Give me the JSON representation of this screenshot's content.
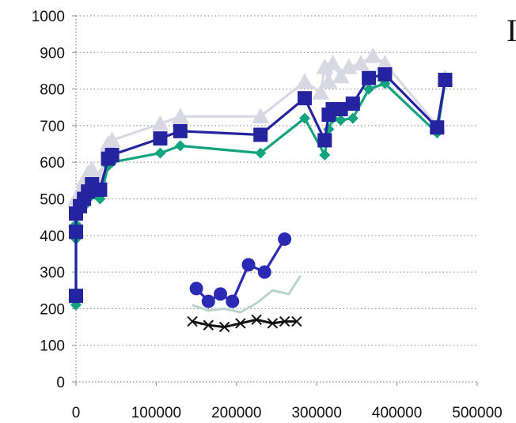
{
  "edge_glyph": "I",
  "chart_data": {
    "type": "line",
    "title": "",
    "xlabel": "",
    "ylabel": "",
    "xlim": [
      0,
      500000
    ],
    "ylim": [
      0,
      1000
    ],
    "x_ticks": [
      0,
      100000,
      200000,
      300000,
      400000,
      500000
    ],
    "y_ticks": [
      0,
      100,
      200,
      300,
      400,
      500,
      600,
      700,
      800,
      900,
      1000
    ],
    "x_tick_labels": [
      "0",
      "100000",
      "200000",
      "300000",
      "400000",
      "500000"
    ],
    "y_tick_labels": [
      "0",
      "100",
      "200",
      "300",
      "400",
      "500",
      "600",
      "700",
      "800",
      "900",
      "1000"
    ],
    "grid": "horizontal dotted",
    "legend": "none",
    "series": [
      {
        "color": "#14a37f",
        "marker": "diamond",
        "x": [
          0,
          0,
          0,
          5000,
          10000,
          15000,
          20000,
          30000,
          40000,
          45000,
          105000,
          130000,
          230000,
          285000,
          310000,
          315000,
          320000,
          330000,
          345000,
          365000,
          385000,
          450000,
          460000
        ],
        "y": [
          210,
          390,
          430,
          470,
          480,
          500,
          510,
          500,
          590,
          600,
          625,
          645,
          625,
          720,
          620,
          690,
          720,
          715,
          720,
          800,
          815,
          680,
          820
        ]
      },
      {
        "color": "#2424a0",
        "marker": "square",
        "x": [
          0,
          0,
          0,
          5000,
          10000,
          15000,
          20000,
          30000,
          40000,
          45000,
          105000,
          130000,
          230000,
          285000,
          310000,
          315000,
          320000,
          330000,
          345000,
          365000,
          385000,
          450000,
          460000
        ],
        "y": [
          235,
          410,
          460,
          480,
          500,
          520,
          540,
          525,
          610,
          620,
          665,
          685,
          675,
          775,
          660,
          730,
          745,
          745,
          760,
          830,
          840,
          695,
          825
        ]
      },
      {
        "color": "#d8d8e4",
        "marker": "triangle",
        "x": [
          0,
          0,
          0,
          5000,
          10000,
          15000,
          20000,
          30000,
          40000,
          45000,
          105000,
          130000,
          230000,
          285000,
          305000,
          310000,
          315000,
          320000,
          330000,
          340000,
          355000,
          370000,
          385000,
          450000,
          460000
        ],
        "y": [
          240,
          440,
          500,
          520,
          550,
          570,
          580,
          560,
          650,
          660,
          705,
          725,
          725,
          820,
          790,
          860,
          820,
          870,
          835,
          860,
          870,
          890,
          870,
          700,
          830
        ]
      },
      {
        "color": "#2a2ab4",
        "marker": "circle",
        "x": [
          150000,
          165000,
          180000,
          195000,
          215000,
          235000,
          260000,
          275000
        ],
        "y": [
          255,
          220,
          240,
          220,
          320,
          300,
          390,
          null
        ]
      },
      {
        "color": "#b9d4c8",
        "marker": "none",
        "x": [
          145000,
          165000,
          185000,
          205000,
          225000,
          245000,
          265000,
          280000
        ],
        "y": [
          210,
          195,
          200,
          190,
          215,
          250,
          240,
          290
        ]
      },
      {
        "color": "#111111",
        "marker": "x",
        "x": [
          145000,
          165000,
          185000,
          205000,
          225000,
          245000,
          260000,
          275000
        ],
        "y": [
          165,
          155,
          150,
          160,
          170,
          160,
          165,
          165
        ]
      }
    ]
  }
}
